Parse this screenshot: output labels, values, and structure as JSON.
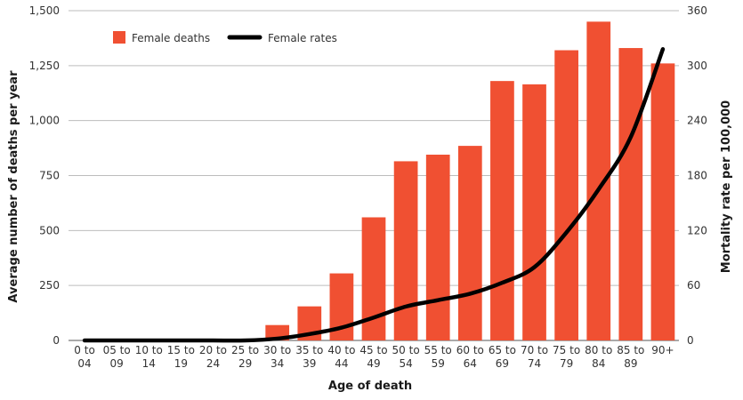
{
  "chart_data": {
    "type": "bar",
    "title": "",
    "xlabel": "Age of death",
    "ylabel": "Average number of deaths per year",
    "y2label": "Mortality rate per 100,000",
    "ylim": [
      0,
      1500
    ],
    "y2lim": [
      0,
      360
    ],
    "yticks": [
      "0",
      "250",
      "500",
      "750",
      "1,000",
      "1,250",
      "1,500"
    ],
    "y2ticks": [
      "0",
      "60",
      "120",
      "180",
      "240",
      "300",
      "360"
    ],
    "grid": true,
    "legend_position": "top-left",
    "categories": [
      [
        "0 to",
        "04"
      ],
      [
        "05 to",
        "09"
      ],
      [
        "10 to",
        "14"
      ],
      [
        "15 to",
        "19"
      ],
      [
        "20 to",
        "24"
      ],
      [
        "25 to",
        "29"
      ],
      [
        "30 to",
        "34"
      ],
      [
        "35 to",
        "39"
      ],
      [
        "40 to",
        "44"
      ],
      [
        "45 to",
        "49"
      ],
      [
        "50 to",
        "54"
      ],
      [
        "55 to",
        "59"
      ],
      [
        "60 to",
        "64"
      ],
      [
        "65 to",
        "69"
      ],
      [
        "70 to",
        "74"
      ],
      [
        "75 to",
        "79"
      ],
      [
        "80 to",
        "84"
      ],
      [
        "85 to",
        "89"
      ],
      [
        "90+",
        ""
      ]
    ],
    "series": [
      {
        "name": "Female deaths",
        "type": "bar",
        "axis": "left",
        "color": "#f05032",
        "values": [
          0,
          0,
          0,
          0,
          0,
          0,
          70,
          155,
          305,
          560,
          815,
          845,
          885,
          1180,
          1165,
          1320,
          1450,
          1330,
          1260
        ]
      },
      {
        "name": "Female rates",
        "type": "line",
        "axis": "right",
        "color": "#000000",
        "values": [
          0,
          0,
          0,
          0,
          0,
          0,
          2,
          7,
          14,
          25,
          37,
          44,
          51,
          63,
          80,
          118,
          165,
          222,
          318
        ]
      }
    ]
  }
}
